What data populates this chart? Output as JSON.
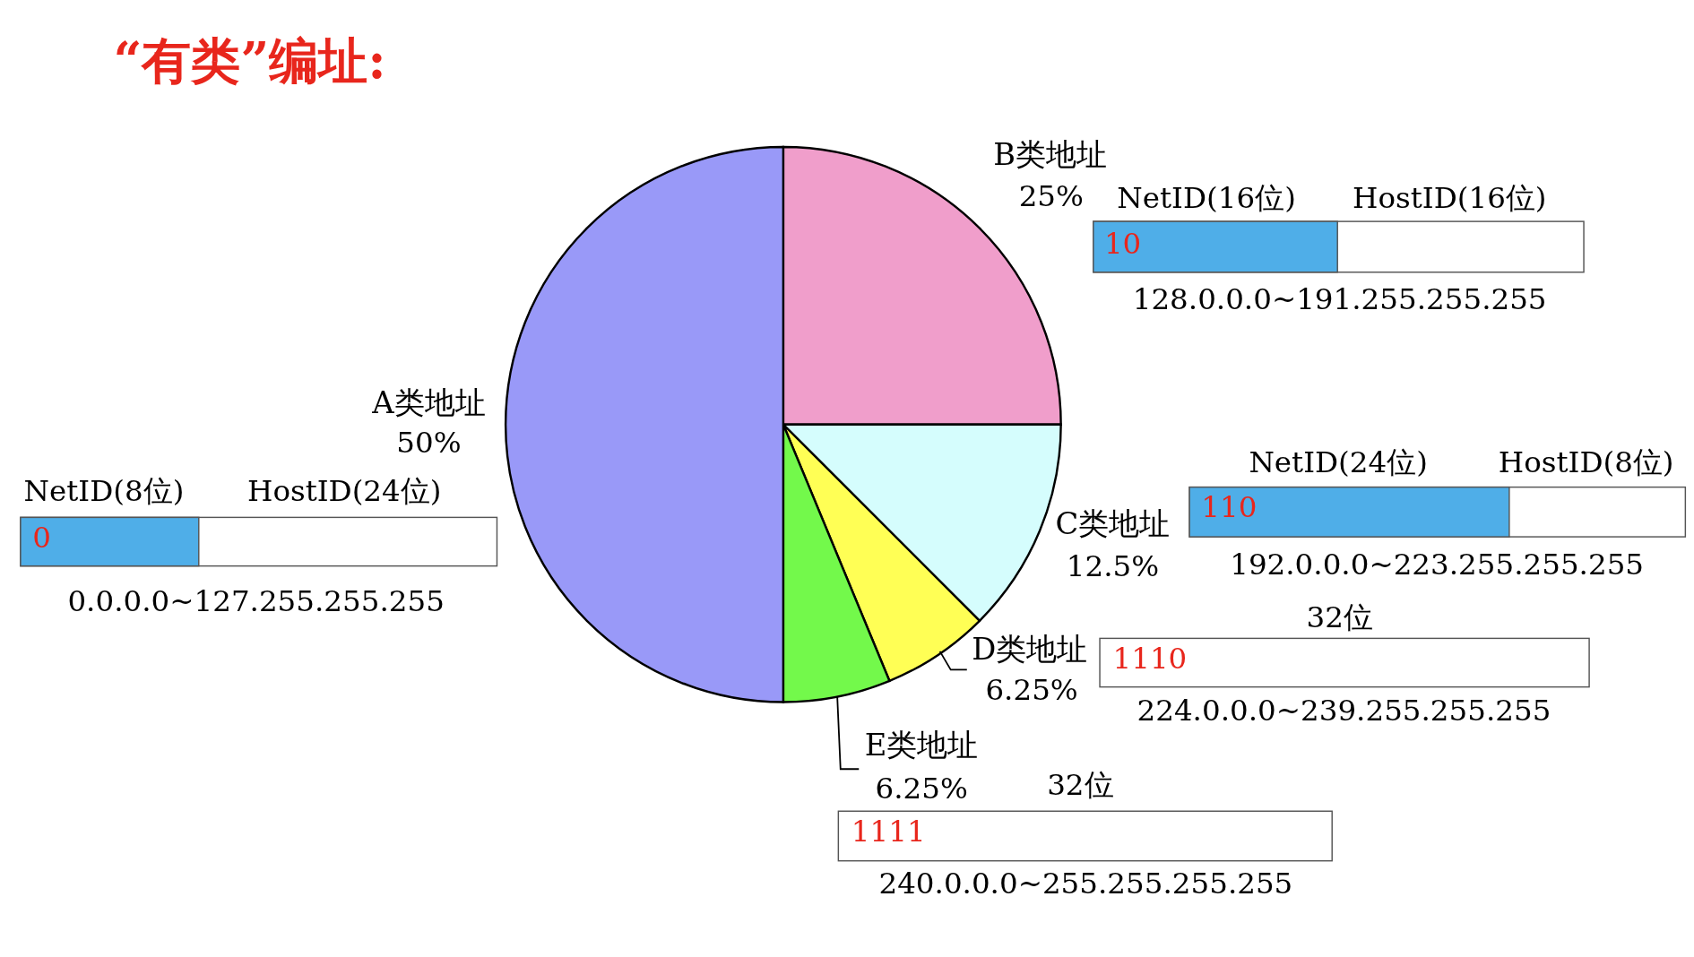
{
  "chart_data": {
    "type": "pie",
    "title": "“有类”编址:",
    "categories": [
      "B类地址",
      "C类地址",
      "D类地址",
      "E类地址",
      "A类地址"
    ],
    "values": [
      25,
      12.5,
      6.25,
      6.25,
      50
    ],
    "value_labels": [
      "25%",
      "12.5%",
      "6.25%",
      "6.25%",
      "50%"
    ],
    "colors": [
      "#f09ecb",
      "#d5fdfd",
      "#ffff55",
      "#73f94b",
      "#9999f8"
    ],
    "annotations": [
      "NetID(8位)",
      "HostID(24位)",
      "0",
      "0.0.0.0~127.255.255.255",
      "NetID(16位)",
      "HostID(16位)",
      "10",
      "128.0.0.0~191.255.255.255",
      "NetID(24位)",
      "HostID(8位)",
      "110",
      "192.0.0.0~223.255.255.255",
      "32位",
      "1110",
      "224.0.0.0~239.255.255.255",
      "32位",
      "1111",
      "240.0.0.0~255.255.255.255"
    ]
  }
}
